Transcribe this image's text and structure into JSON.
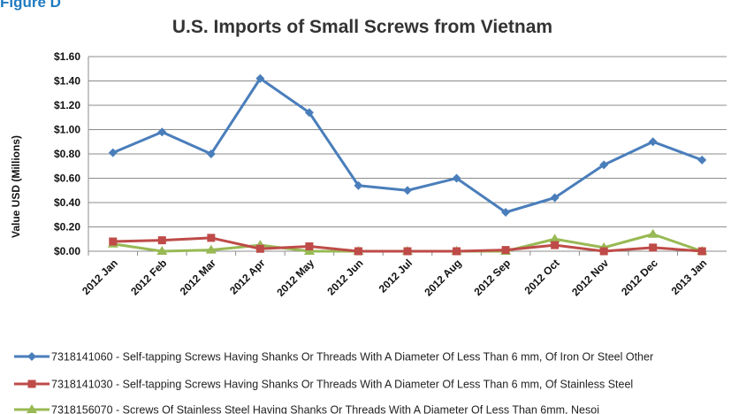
{
  "figure_label": "Figure D",
  "chart_data": {
    "type": "line",
    "title": "U.S. Imports of Small Screws from Vietnam",
    "xlabel": "",
    "ylabel": "Value USD (Millions)",
    "ylim": [
      0,
      1.6
    ],
    "yticks": [
      "$0.00",
      "$0.20",
      "$0.40",
      "$0.60",
      "$0.80",
      "$1.00",
      "$1.20",
      "$1.40",
      "$1.60"
    ],
    "grid": true,
    "legend_position": "bottom",
    "categories": [
      "2012 Jan",
      "2012 Feb",
      "2012 Mar",
      "2012 Apr",
      "2012 May",
      "2012 Jun",
      "2012 Jul",
      "2012 Aug",
      "2012 Sep",
      "2012 Oct",
      "2012 Nov",
      "2012 Dec",
      "2013 Jan"
    ],
    "series": [
      {
        "name": "7318141060 - Self-tapping Screws Having Shanks Or Threads With A Diameter Of Less Than 6 mm, Of Iron Or Steel Other",
        "color": "#4a7ebb",
        "marker": "diamond",
        "values": [
          0.81,
          0.98,
          0.8,
          1.42,
          1.14,
          0.54,
          0.5,
          0.6,
          0.32,
          0.44,
          0.71,
          0.9,
          0.75
        ]
      },
      {
        "name": "7318141030 - Self-tapping Screws Having Shanks Or Threads With A Diameter Of Less Than 6 mm, Of Stainless Steel",
        "color": "#be4b48",
        "marker": "square",
        "values": [
          0.08,
          0.09,
          0.11,
          0.02,
          0.04,
          0.0,
          0.0,
          0.0,
          0.01,
          0.05,
          0.0,
          0.03,
          0.0
        ]
      },
      {
        "name": "7318156070 - Screws Of Stainless Steel Having Shanks Or Threads With A Diameter Of Less Than 6mm, Nesoi",
        "color": "#98b954",
        "marker": "triangle",
        "values": [
          0.06,
          0.0,
          0.01,
          0.05,
          0.0,
          0.0,
          0.0,
          0.0,
          0.0,
          0.1,
          0.03,
          0.14,
          0.0
        ]
      }
    ]
  }
}
